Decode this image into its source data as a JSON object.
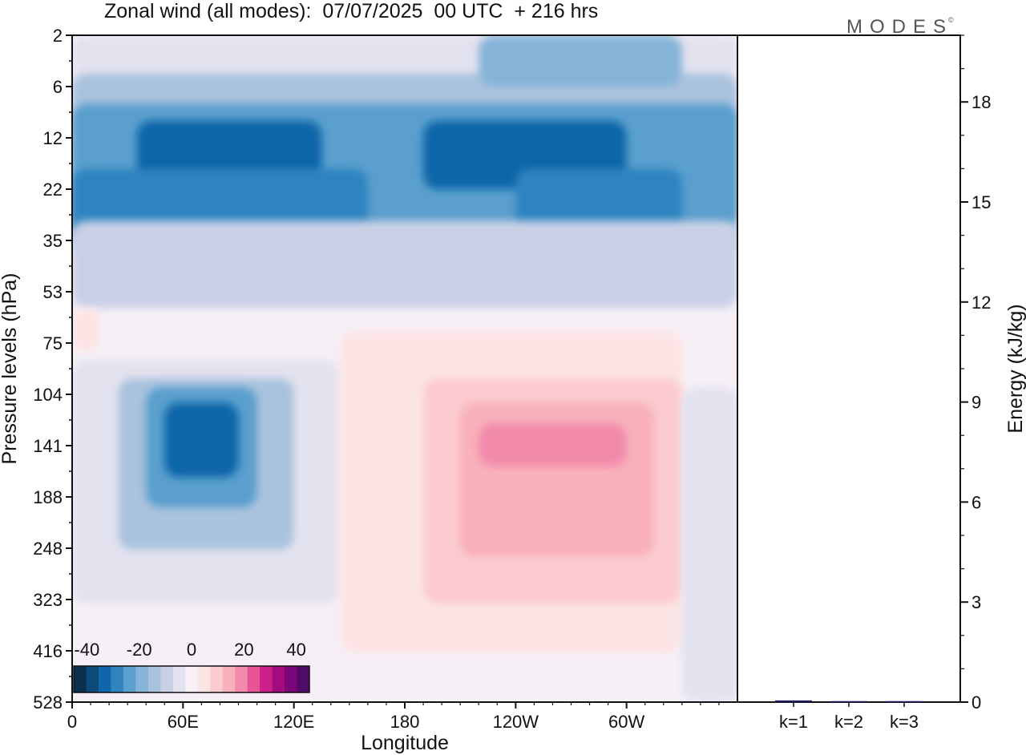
{
  "title": "Zonal wind (all modes):  07/07/2025  00 UTC  + 216 hrs",
  "brand": "MODES",
  "brand_mark": "©",
  "chart_data": [
    {
      "type": "heatmap",
      "title": "Zonal wind (all modes):  07/07/2025  00 UTC  + 216 hrs",
      "xlabel": "Longitude",
      "ylabel": "Pressure levels (hPa)",
      "x_ticks": [
        "0",
        "60E",
        "120E",
        "180",
        "120W",
        "60W"
      ],
      "y_ticks": [
        "2",
        "6",
        "12",
        "22",
        "35",
        "53",
        "75",
        "104",
        "141",
        "188",
        "248",
        "323",
        "416",
        "528"
      ],
      "colorbar": {
        "labels": [
          "-40",
          "-20",
          "0",
          "20",
          "40"
        ],
        "range": [
          -45,
          45
        ],
        "colors": [
          "#0a3050",
          "#0d4a7a",
          "#0f66a8",
          "#2f84c0",
          "#5a9fce",
          "#86b4d8",
          "#a9c2dd",
          "#c9d0e6",
          "#e3e2ef",
          "#f7f0f6",
          "#fde4e4",
          "#fccbcf",
          "#f8b0ba",
          "#f28aaa",
          "#e75597",
          "#cd2189",
          "#a20c7e",
          "#7a0679",
          "#4f0b65"
        ]
      },
      "regions": [
        {
          "lon": [
            0,
            360
          ],
          "lev": [
            2,
            14
          ],
          "value": -5
        },
        {
          "lon": [
            0,
            360
          ],
          "lev": [
            5,
            40
          ],
          "value": -15
        },
        {
          "lon": [
            0,
            360
          ],
          "lev": [
            8,
            32
          ],
          "value": -25
        },
        {
          "lon": [
            35,
            135
          ],
          "lev": [
            10,
            24
          ],
          "value": -35
        },
        {
          "lon": [
            190,
            300
          ],
          "lev": [
            10,
            22
          ],
          "value": -35
        },
        {
          "lon": [
            0,
            160
          ],
          "lev": [
            18,
            34
          ],
          "value": -30
        },
        {
          "lon": [
            240,
            330
          ],
          "lev": [
            18,
            34
          ],
          "value": -30
        },
        {
          "lon": [
            220,
            330
          ],
          "lev": [
            2,
            6
          ],
          "value": -20
        },
        {
          "lon": [
            0,
            360
          ],
          "lev": [
            30,
            60
          ],
          "value": -8
        },
        {
          "lon": [
            0,
            145
          ],
          "lev": [
            85,
            330
          ],
          "value": -6
        },
        {
          "lon": [
            25,
            120
          ],
          "lev": [
            95,
            250
          ],
          "value": -15
        },
        {
          "lon": [
            40,
            100
          ],
          "lev": [
            100,
            200
          ],
          "value": -25
        },
        {
          "lon": [
            50,
            90
          ],
          "lev": [
            110,
            170
          ],
          "value": -35
        },
        {
          "lon": [
            145,
            330
          ],
          "lev": [
            70,
            420
          ],
          "value": 4
        },
        {
          "lon": [
            190,
            330
          ],
          "lev": [
            95,
            330
          ],
          "value": 8
        },
        {
          "lon": [
            210,
            315
          ],
          "lev": [
            110,
            260
          ],
          "value": 12
        },
        {
          "lon": [
            220,
            300
          ],
          "lev": [
            125,
            160
          ],
          "value": 18
        },
        {
          "lon": [
            0,
            15
          ],
          "lev": [
            60,
            80
          ],
          "value": 4
        },
        {
          "lon": [
            330,
            360
          ],
          "lev": [
            100,
            528
          ],
          "value": -5
        }
      ]
    },
    {
      "type": "bar",
      "ylabel": "Energy (kJ/kg)",
      "categories": [
        "k=1",
        "k=2",
        "k=3"
      ],
      "values": [
        0.05,
        0.03,
        0.03
      ],
      "ylim": [
        0,
        20
      ],
      "y_ticks": [
        "0",
        "3",
        "6",
        "9",
        "12",
        "15",
        "18"
      ],
      "bar_color": "#1a1a66"
    }
  ]
}
